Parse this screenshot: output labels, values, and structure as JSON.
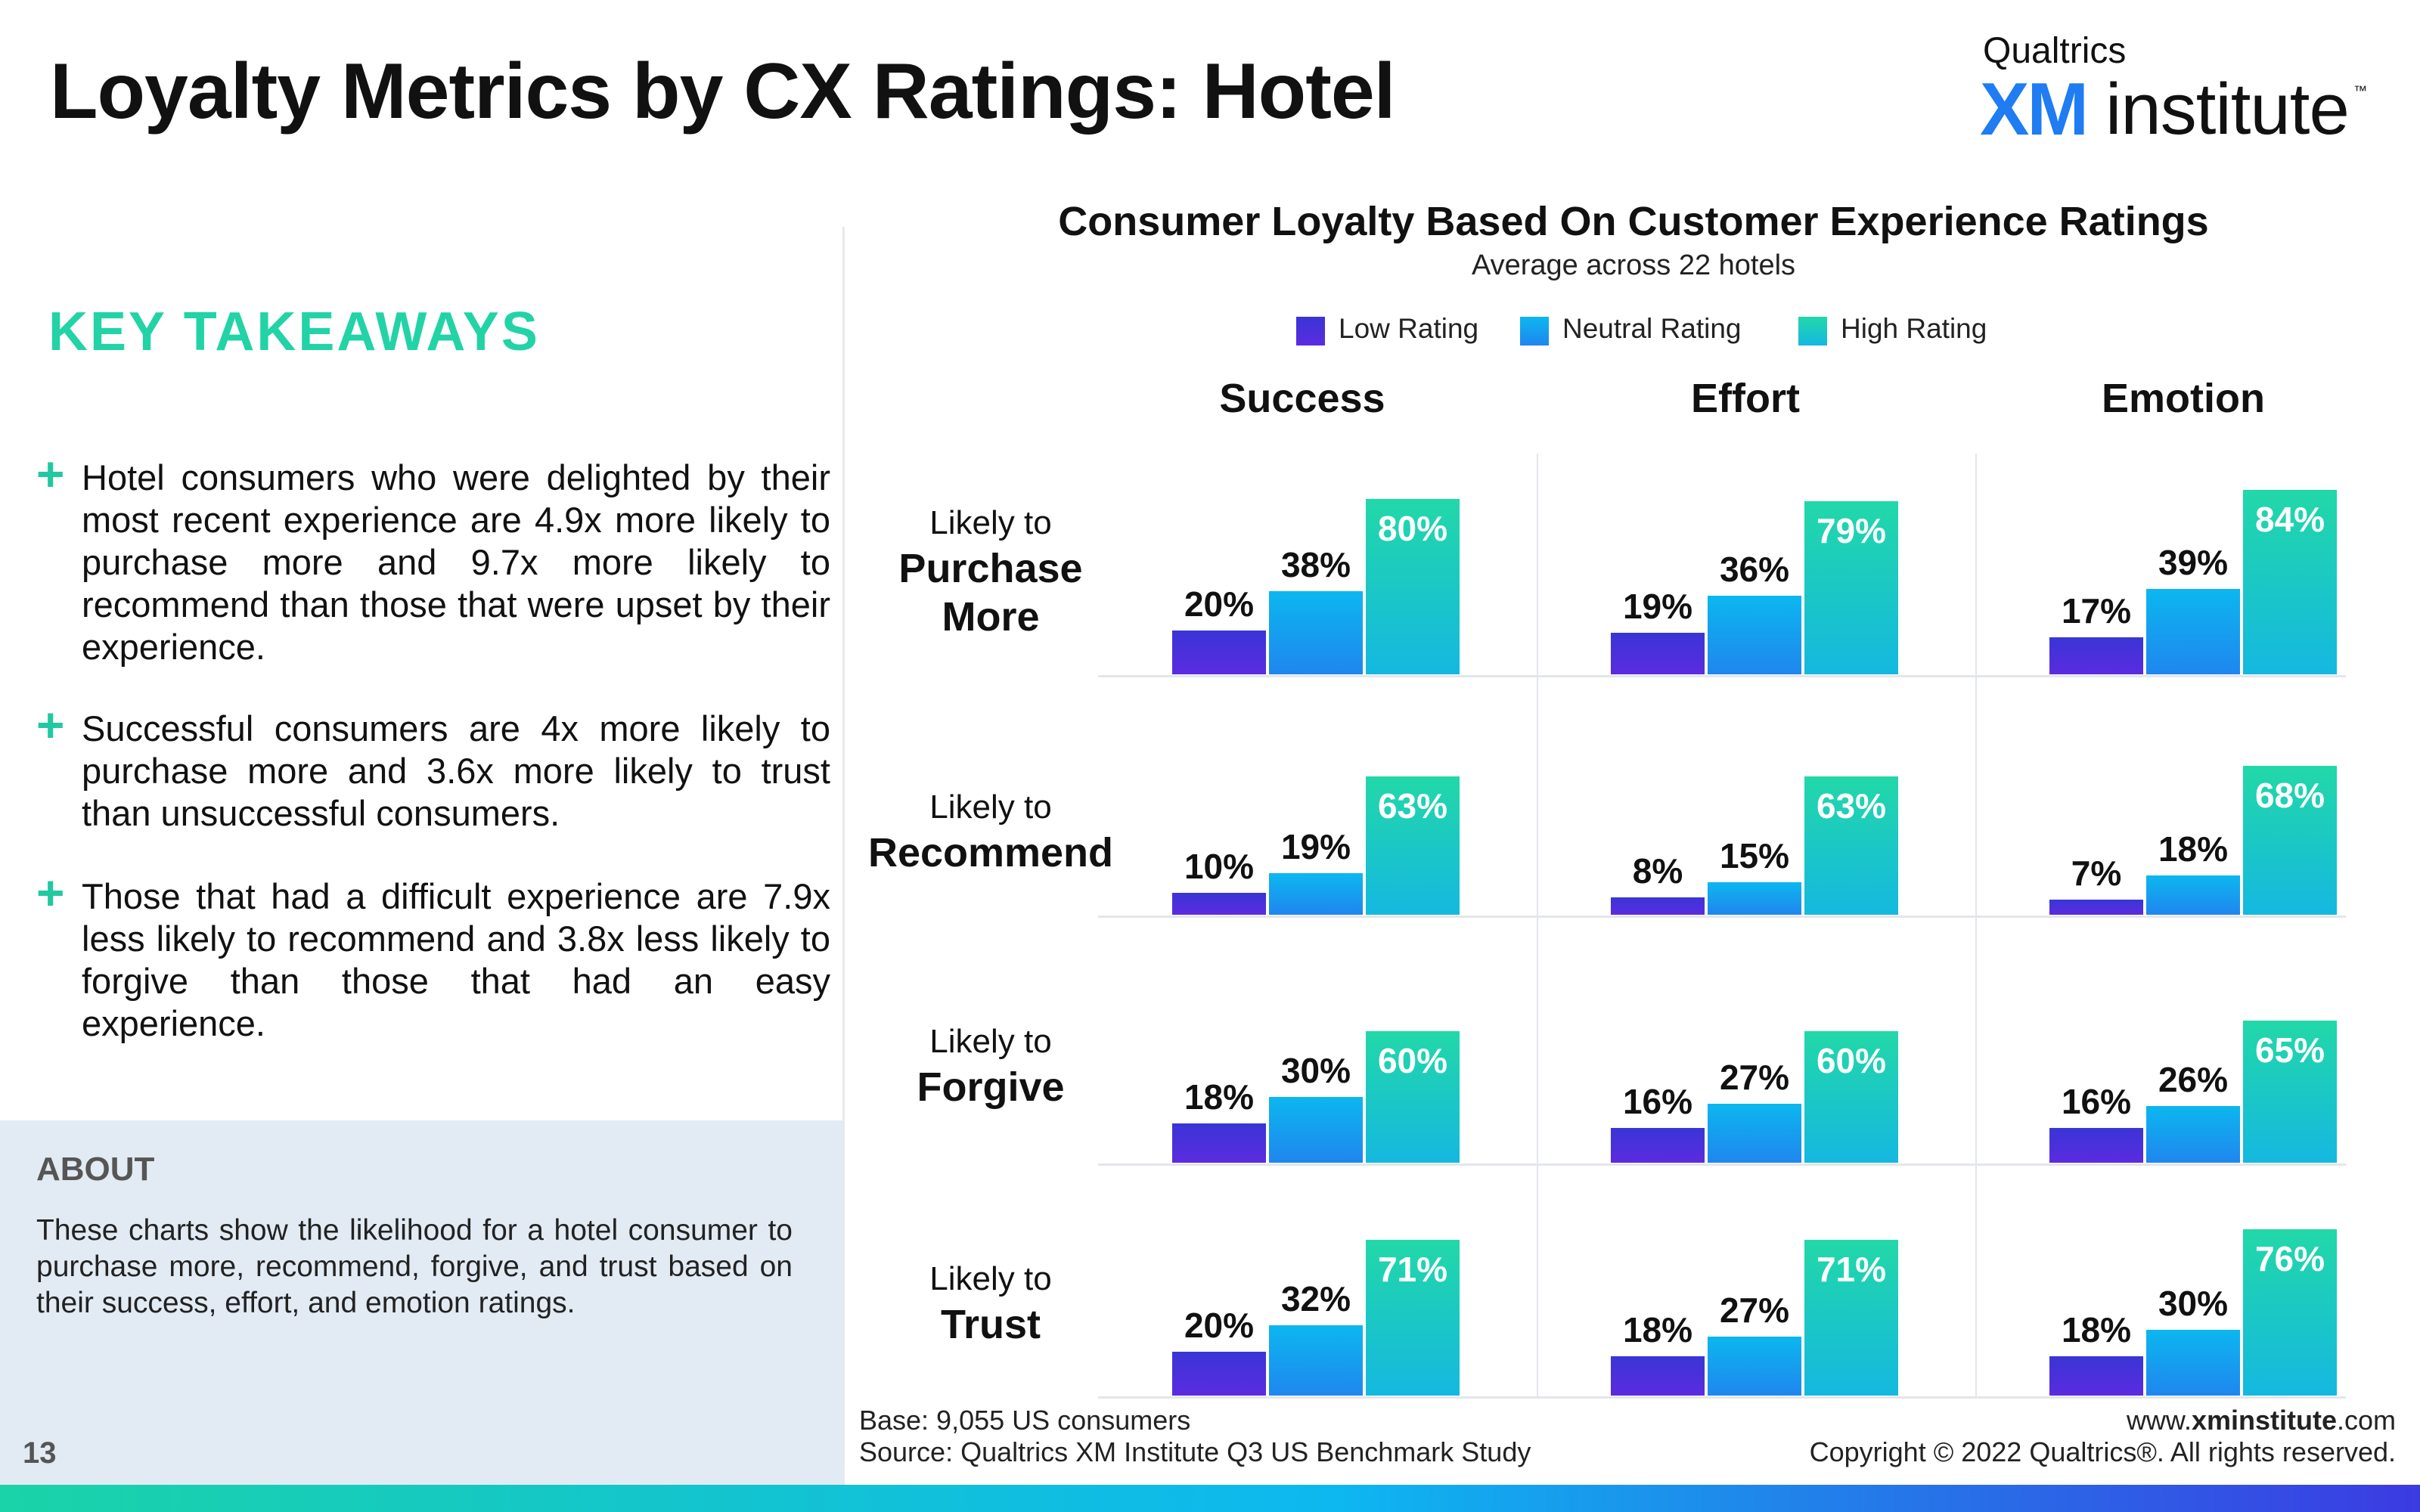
{
  "header": {
    "title": "Loyalty Metrics by CX Ratings: Hotel",
    "logo": {
      "top": "Qualtrics",
      "xm": "XM",
      "institute": "institute",
      "tm": "™"
    }
  },
  "takeaways": {
    "title": "KEY TAKEAWAYS",
    "bullet_icon": "plus-icon",
    "items": [
      "Hotel consumers who were delighted by their most recent experience are 4.9x more likely to purchase more and 9.7x more likely to recommend than those that were upset by their experience.",
      "Successful consumers are 4x more likely to purchase more and 3.6x more likely to trust than unsuccessful consumers.",
      "Those that had a difficult experience are 7.9x less likely to recommend and 3.8x less likely to forgive than those that had an easy experience."
    ]
  },
  "about": {
    "title": "ABOUT",
    "text": "These charts show the likelihood for a hotel consumer to purchase more, recommend, forgive, and trust based on their success, effort, and emotion ratings."
  },
  "page_number": "13",
  "footer": {
    "base": "Base: 9,055 US consumers",
    "source": "Source: Qualtrics XM Institute Q3 US Benchmark Study",
    "url_prefix": "www.",
    "url_bold": "xminstitute",
    "url_suffix": ".com",
    "copyright": "Copyright © 2022 Qualtrics®. All rights reserved."
  },
  "colors": {
    "low": "#4330dc",
    "neutral": "#0aa8ef",
    "high": "#1fd6a6",
    "accent": "#22d3a6"
  },
  "chart_data": {
    "type": "bar",
    "title": "Consumer Loyalty Based On Customer Experience Ratings",
    "subtitle": "Average across 22 hotels",
    "legend": [
      "Low Rating",
      "Neutral Rating",
      "High Rating"
    ],
    "legend_position": "top-center",
    "columns": [
      "Success",
      "Effort",
      "Emotion"
    ],
    "rows": [
      {
        "prefix": "Likely to",
        "name": "Purchase More"
      },
      {
        "prefix": "Likely to",
        "name": "Recommend"
      },
      {
        "prefix": "Likely to",
        "name": "Forgive"
      },
      {
        "prefix": "Likely to",
        "name": "Trust"
      }
    ],
    "unit": "%",
    "values": [
      [
        [
          20,
          38,
          80
        ],
        [
          19,
          36,
          79
        ],
        [
          17,
          39,
          84
        ]
      ],
      [
        [
          10,
          19,
          63
        ],
        [
          8,
          15,
          63
        ],
        [
          7,
          18,
          68
        ]
      ],
      [
        [
          18,
          30,
          60
        ],
        [
          16,
          27,
          60
        ],
        [
          16,
          26,
          65
        ]
      ],
      [
        [
          20,
          32,
          71
        ],
        [
          18,
          27,
          71
        ],
        [
          18,
          30,
          76
        ]
      ]
    ],
    "ylim": [
      0,
      100
    ]
  }
}
